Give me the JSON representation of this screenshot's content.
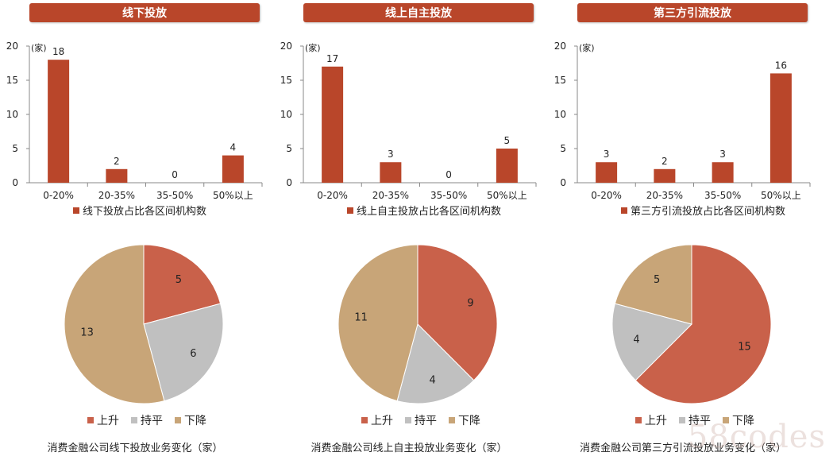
{
  "colors": {
    "bar": "#b9462a",
    "rise": "#c9614a",
    "flat": "#c0c0c0",
    "fall": "#c8a578",
    "banner": "#b9462a"
  },
  "watermark": "58codes",
  "chart_data": [
    {
      "type": "bar",
      "banner": "线下投放",
      "unit_label": "(家)",
      "categories": [
        "0-20%",
        "20-35%",
        "35-50%",
        "50%以上"
      ],
      "values": [
        18,
        2,
        0,
        4
      ],
      "ylim": [
        0,
        20
      ],
      "yticks": [
        "0",
        "5",
        "10",
        "15",
        "20"
      ],
      "legend": "线下投放占比各区间机构数"
    },
    {
      "type": "bar",
      "banner": "线上自主投放",
      "unit_label": "(家)",
      "categories": [
        "0-20%",
        "20-35%",
        "35-50%",
        "50%以上"
      ],
      "values": [
        17,
        3,
        0,
        5
      ],
      "ylim": [
        0,
        20
      ],
      "yticks": [
        "0",
        "5",
        "10",
        "15",
        "20"
      ],
      "legend": "线上自主投放占比各区间机构数"
    },
    {
      "type": "bar",
      "banner": "第三方引流投放",
      "unit_label": "(家)",
      "categories": [
        "0-20%",
        "20-35%",
        "35-50%",
        "50%以上"
      ],
      "values": [
        3,
        2,
        3,
        16
      ],
      "ylim": [
        0,
        20
      ],
      "yticks": [
        "0",
        "5",
        "10",
        "15",
        "20"
      ],
      "legend": "第三方引流投放占比各区间机构数"
    },
    {
      "type": "pie",
      "title": "消费金融公司线下投放业务变化（家）",
      "slices": [
        {
          "name": "上升",
          "value": 5
        },
        {
          "name": "持平",
          "value": 6
        },
        {
          "name": "下降",
          "value": 13
        }
      ]
    },
    {
      "type": "pie",
      "title": "消费金融公司线上自主投放业务变化（家）",
      "slices": [
        {
          "name": "上升",
          "value": 9
        },
        {
          "name": "持平",
          "value": 4
        },
        {
          "name": "下降",
          "value": 11
        }
      ]
    },
    {
      "type": "pie",
      "title": "消费金融公司第三方引流投放业务变化（家）",
      "slices": [
        {
          "name": "上升",
          "value": 15
        },
        {
          "name": "持平",
          "value": 4
        },
        {
          "name": "下降",
          "value": 5
        }
      ]
    }
  ]
}
